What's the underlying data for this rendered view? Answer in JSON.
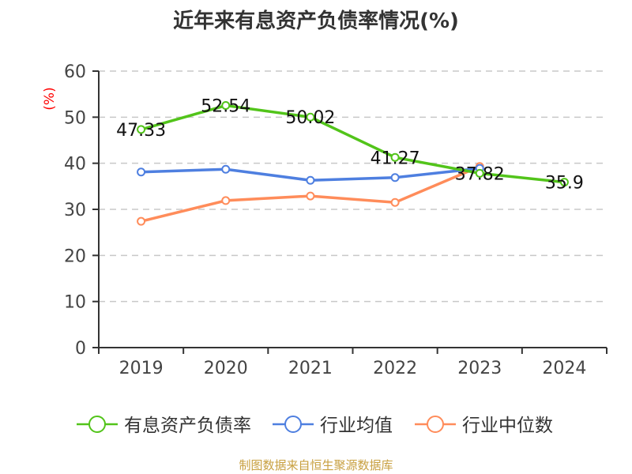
{
  "chart_data": {
    "type": "line",
    "title": "近年来有息资产负债率情况(%)",
    "ylabel": "(%)",
    "categories": [
      "2019",
      "2020",
      "2021",
      "2022",
      "2023",
      "2024"
    ],
    "ylim": [
      0,
      60
    ],
    "yticks": [
      0,
      10,
      20,
      30,
      40,
      50,
      60
    ],
    "grid": true,
    "legend_position": "bottom",
    "series": [
      {
        "name": "有息资产负债率",
        "color": "#52c41a",
        "values": [
          47.33,
          52.54,
          50.02,
          41.27,
          37.82,
          35.9
        ],
        "labels": [
          "47.33",
          "52.54",
          "50.02",
          "41.27",
          "37.82",
          "35.9"
        ]
      },
      {
        "name": "行业均值",
        "color": "#4e7fe0",
        "values": [
          38.1,
          38.7,
          36.3,
          36.9,
          38.9,
          null
        ]
      },
      {
        "name": "行业中位数",
        "color": "#ff8c5a",
        "values": [
          27.4,
          31.9,
          32.9,
          31.5,
          39.3,
          null
        ]
      }
    ]
  },
  "footer": {
    "source": "制图数据来自恒生聚源数据库"
  }
}
